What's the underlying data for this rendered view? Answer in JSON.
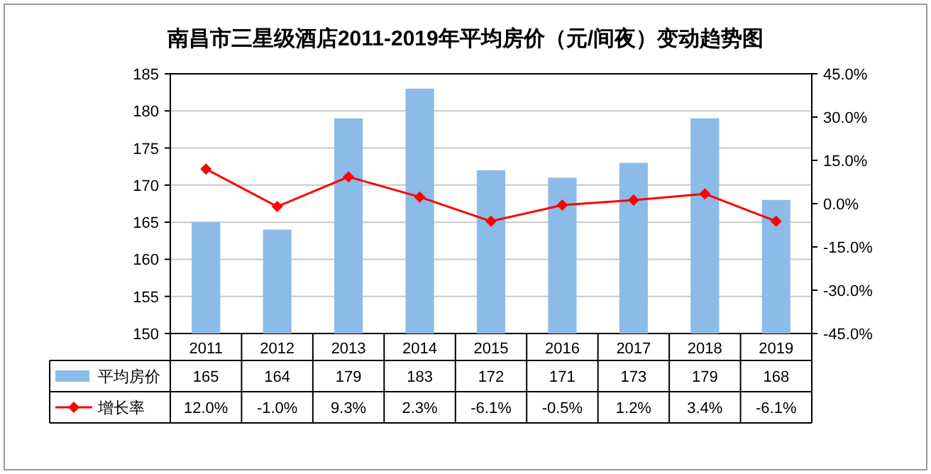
{
  "chart_data": {
    "type": "bar",
    "title": "南昌市三星级酒店2011-2019年平均房价（元/间夜）变动趋势图",
    "categories": [
      "2011",
      "2012",
      "2013",
      "2014",
      "2015",
      "2016",
      "2017",
      "2018",
      "2019"
    ],
    "series": [
      {
        "name": "平均房价",
        "color": "#8dbbe8",
        "values": [
          165,
          164,
          179,
          183,
          172,
          171,
          173,
          179,
          168
        ],
        "value_labels": [
          "165",
          "164",
          "179",
          "183",
          "172",
          "171",
          "173",
          "179",
          "168"
        ]
      },
      {
        "name": "增长率",
        "type": "line",
        "axis": "y2",
        "marker": "diamond",
        "color": "#ff0000",
        "values": [
          12.0,
          -1.0,
          9.3,
          2.3,
          -6.1,
          -0.5,
          1.2,
          3.4,
          -6.1
        ],
        "value_labels": [
          "12.0%",
          "-1.0%",
          "9.3%",
          "2.3%",
          "-6.1%",
          "-0.5%",
          "1.2%",
          "3.4%",
          "-6.1%"
        ]
      }
    ],
    "ylim": [
      150,
      185
    ],
    "yticks": [
      150,
      155,
      160,
      165,
      170,
      175,
      180,
      185
    ],
    "y2lim": [
      -45,
      45
    ],
    "y2ticks": [
      {
        "value": -45,
        "label": "-45.0%"
      },
      {
        "value": -30,
        "label": "-30.0%"
      },
      {
        "value": -15,
        "label": "-15.0%"
      },
      {
        "value": 0,
        "label": "0.0%"
      },
      {
        "value": 15,
        "label": "15.0%"
      },
      {
        "value": 30,
        "label": "30.0%"
      },
      {
        "value": 45,
        "label": "45.0%"
      }
    ],
    "grid": "y",
    "legend": "bottom"
  }
}
